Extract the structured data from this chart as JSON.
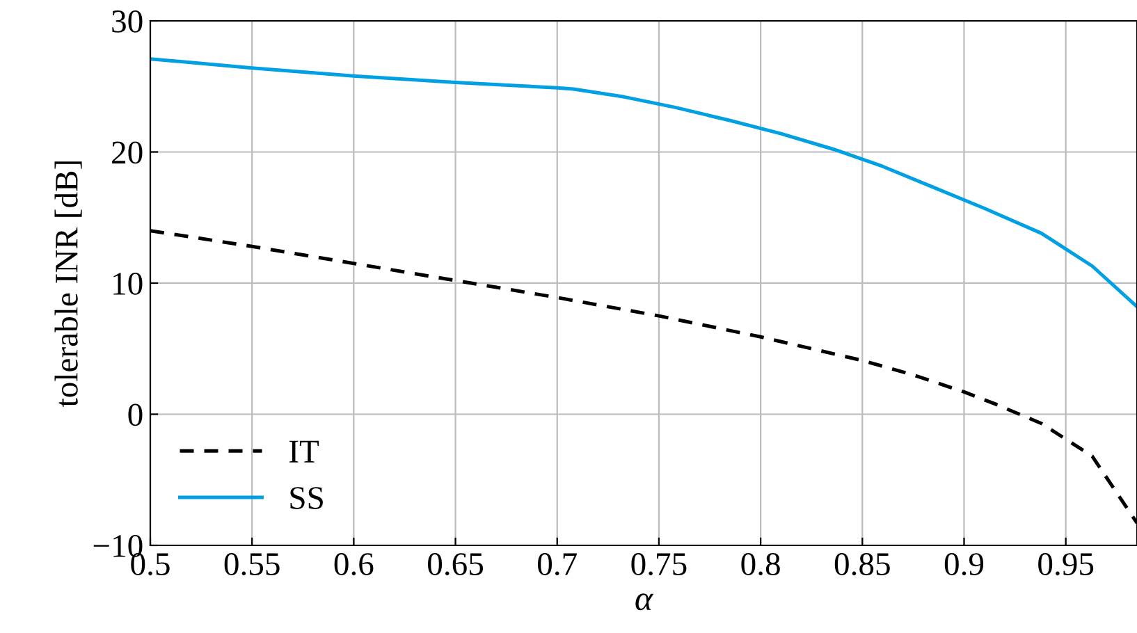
{
  "chart_data": {
    "type": "line",
    "xlabel": "α",
    "ylabel": "tolerable INR [dB]",
    "xlim": [
      0.5,
      0.985
    ],
    "xticks": [
      0.5,
      0.55,
      0.6,
      0.65,
      0.7,
      0.75,
      0.8,
      0.85,
      0.9,
      0.95
    ],
    "ylim": [
      -10,
      30
    ],
    "yticks": [
      {
        "value": -10,
        "label": "−10"
      },
      0,
      10,
      20,
      30
    ],
    "grid": true,
    "legend": "bottom left",
    "series": [
      {
        "name": "IT",
        "color": "#000000",
        "line_style": "dashed",
        "x": [
          0.5,
          0.55,
          0.6,
          0.65,
          0.7,
          0.75,
          0.8,
          0.85,
          0.875,
          0.9,
          0.915,
          0.938,
          0.963,
          0.985
        ],
        "values": [
          14.0,
          12.8,
          11.5,
          10.2,
          8.9,
          7.5,
          5.9,
          4.1,
          3.0,
          1.7,
          0.8,
          -0.7,
          -3.2,
          -8.3
        ]
      },
      {
        "name": "SS",
        "color": "#00a0e3",
        "line_style": "solid",
        "x": [
          0.5,
          0.55,
          0.6,
          0.65,
          0.7,
          0.708,
          0.733,
          0.758,
          0.785,
          0.81,
          0.836,
          0.86,
          0.885,
          0.91,
          0.938,
          0.963,
          0.985
        ],
        "values": [
          27.1,
          26.4,
          25.8,
          25.3,
          24.9,
          24.8,
          24.2,
          23.4,
          22.4,
          21.4,
          20.2,
          18.9,
          17.3,
          15.7,
          13.8,
          11.3,
          8.2
        ]
      }
    ]
  }
}
